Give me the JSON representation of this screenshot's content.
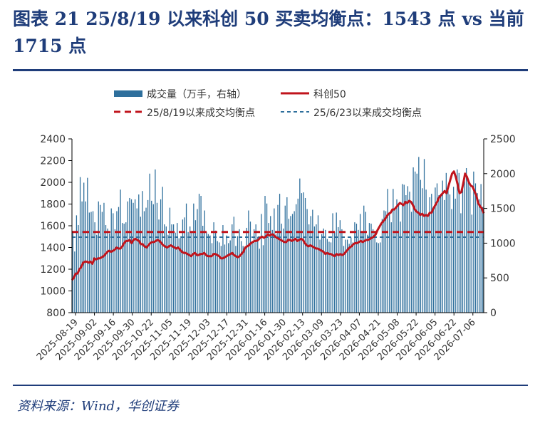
{
  "figure": {
    "title": "图表 21   25/8/19 以来科创 50 买卖均衡点：1543 点  vs 当前 1715 点",
    "source": "资料来源：Wind，华创证券"
  },
  "colors": {
    "volume": "#2e6f9c",
    "line": "#c0141c",
    "ref_red": "#c0141c",
    "ref_blue": "#2e6f9c",
    "accent": "#1f3d7a"
  },
  "chart_data": {
    "type": "bar+line",
    "legend": [
      {
        "key": "volume",
        "label": "成交量（万手，右轴）"
      },
      {
        "key": "index",
        "label": "科创50"
      },
      {
        "key": "ref_red",
        "label": "25/8/19以来成交均衡点"
      },
      {
        "key": "ref_blue",
        "label": "25/6/23以来成交均衡点"
      }
    ],
    "left_axis": {
      "min": 800,
      "max": 2400,
      "ticks": [
        800,
        1000,
        1200,
        1400,
        1600,
        1800,
        2000,
        2200,
        2400
      ]
    },
    "right_axis": {
      "min": 0,
      "max": 2500,
      "ticks": [
        0,
        500,
        1000,
        1500,
        2000,
        2500
      ]
    },
    "x_tick_labels": [
      "2025-08-19",
      "2025-09-02",
      "2025-09-16",
      "2025-09-30",
      "2025-10-22",
      "2025-11-05",
      "2025-11-19",
      "2025-12-03",
      "2025-12-17",
      "2025-12-31",
      "2026-01-16",
      "2026-01-30",
      "2026-02-13",
      "2026-03-09",
      "2026-03-23",
      "2026-04-07",
      "2026-04-21",
      "2026-05-08",
      "2026-05-22",
      "2026-06-05",
      "2026-06-22",
      "2026-07-06"
    ],
    "ref_lines": [
      {
        "series": "25/8/19以来成交均衡点",
        "axis": "left",
        "value": 1543
      },
      {
        "series": "25/6/23以来成交均衡点",
        "axis": "left",
        "value": 1495
      }
    ],
    "index_series": {
      "name": "科创50",
      "values": [
        1100,
        1120,
        1160,
        1160,
        1200,
        1220,
        1260,
        1270,
        1270,
        1260,
        1270,
        1250,
        1300,
        1290,
        1300,
        1300,
        1310,
        1320,
        1340,
        1360,
        1370,
        1360,
        1370,
        1380,
        1400,
        1390,
        1390,
        1410,
        1440,
        1460,
        1460,
        1470,
        1440,
        1470,
        1480,
        1470,
        1460,
        1430,
        1430,
        1410,
        1400,
        1420,
        1440,
        1450,
        1450,
        1460,
        1470,
        1460,
        1440,
        1420,
        1410,
        1400,
        1410,
        1420,
        1410,
        1400,
        1390,
        1400,
        1380,
        1360,
        1350,
        1350,
        1340,
        1330,
        1320,
        1340,
        1350,
        1330,
        1330,
        1340,
        1340,
        1350,
        1330,
        1320,
        1320,
        1320,
        1340,
        1340,
        1330,
        1320,
        1300,
        1300,
        1310,
        1320,
        1330,
        1340,
        1350,
        1330,
        1320,
        1310,
        1320,
        1340,
        1360,
        1400,
        1410,
        1420,
        1440,
        1450,
        1460,
        1460,
        1470,
        1490,
        1500,
        1490,
        1500,
        1520,
        1510,
        1520,
        1520,
        1500,
        1490,
        1480,
        1470,
        1460,
        1450,
        1450,
        1470,
        1470,
        1460,
        1470,
        1480,
        1460,
        1470,
        1480,
        1470,
        1440,
        1420,
        1410,
        1420,
        1410,
        1400,
        1390,
        1390,
        1380,
        1370,
        1360,
        1340,
        1350,
        1340,
        1340,
        1330,
        1320,
        1340,
        1330,
        1340,
        1330,
        1340,
        1360,
        1380,
        1400,
        1410,
        1430,
        1440,
        1440,
        1450,
        1460,
        1450,
        1460,
        1470,
        1470,
        1480,
        1490,
        1500,
        1520,
        1560,
        1590,
        1620,
        1640,
        1660,
        1690,
        1710,
        1720,
        1750,
        1750,
        1770,
        1790,
        1810,
        1800,
        1790,
        1820,
        1810,
        1830,
        1820,
        1790,
        1750,
        1730,
        1720,
        1700,
        1710,
        1690,
        1700,
        1690,
        1720,
        1720,
        1760,
        1790,
        1820,
        1860,
        1880,
        1900,
        1920,
        1900,
        1960,
        2020,
        2080,
        2100,
        2050,
        1980,
        1900,
        1910,
        1990,
        2080,
        2050,
        2000,
        1970,
        1960,
        1920,
        1880,
        1810,
        1780,
        1760,
        1715
      ]
    },
    "volume_series": {
      "name": "成交量（万手，右轴）",
      "values": [
        1150,
        880,
        1400,
        1260,
        1950,
        1600,
        1870,
        1600,
        1940,
        1440,
        1450,
        1460,
        1300,
        1120,
        1600,
        1550,
        1450,
        1580,
        1260,
        1210,
        1140,
        1500,
        1430,
        1200,
        1460,
        1520,
        1770,
        1290,
        1280,
        1300,
        1600,
        1650,
        1630,
        1580,
        1630,
        1500,
        1700,
        1380,
        1750,
        1460,
        1510,
        1620,
        2000,
        1610,
        1560,
        2060,
        1580,
        1340,
        1630,
        1810,
        1270,
        1240,
        1120,
        1510,
        1270,
        1270,
        1150,
        1290,
        1070,
        1100,
        1340,
        1370,
        1570,
        1160,
        1240,
        1150,
        1570,
        1330,
        1490,
        1710,
        1680,
        1250,
        1470,
        1160,
        1130,
        1110,
        1000,
        1300,
        1180,
        1030,
        1010,
        960,
        1260,
        980,
        1110,
        1000,
        1040,
        1270,
        1380,
        960,
        1100,
        1200,
        1030,
        960,
        930,
        1220,
        1470,
        1310,
        1000,
        1200,
        1270,
        1090,
        920,
        1420,
        970,
        1680,
        1570,
        1290,
        1390,
        1190,
        1500,
        1130,
        1550,
        1710,
        1280,
        1210,
        1540,
        1660,
        1350,
        1390,
        1420,
        1460,
        1560,
        1640,
        1930,
        1720,
        1730,
        1650,
        1490,
        1270,
        1390,
        1480,
        1240,
        1270,
        1400,
        1050,
        1130,
        1210,
        1190,
        1060,
        1020,
        1010,
        1430,
        1160,
        1440,
        1230,
        1330,
        1200,
        960,
        1050,
        1050,
        990,
        1080,
        1010,
        1300,
        1280,
        1190,
        1420,
        1160,
        1540,
        1450,
        1120,
        1290,
        1280,
        1200,
        1150,
        1010,
        1000,
        1010,
        1350,
        1470,
        1460,
        1780,
        1430,
        1300,
        1780,
        1490,
        1630,
        1580,
        1310,
        1850,
        1840,
        1690,
        1820,
        1740,
        1450,
        2090,
        2030,
        2000,
        2240,
        1910,
        1790,
        2210,
        1770,
        1400,
        1660,
        1710,
        1480,
        1800,
        1860,
        1690,
        1710,
        1900,
        1620,
        2010,
        1790,
        1700,
        1490,
        1810,
        1640,
        2060,
        2010,
        1430,
        1770,
        1890,
        2080,
        1920,
        1810,
        1410,
        2030,
        1860,
        1720,
        1630,
        1850,
        1520
      ]
    }
  }
}
